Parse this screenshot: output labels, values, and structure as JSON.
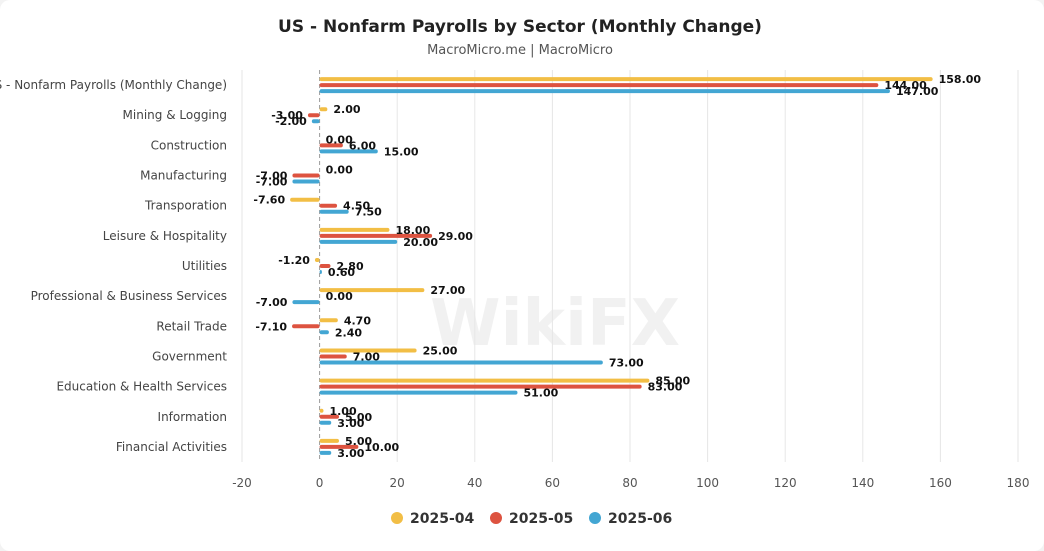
{
  "chart_data": {
    "type": "bar",
    "orientation": "horizontal",
    "title": "US - Nonfarm Payrolls by Sector (Monthly Change)",
    "subtitle": "MacroMicro.me | MacroMicro",
    "categories": [
      "US - Nonfarm Payrolls (Monthly Change)",
      "Mining & Logging",
      "Construction",
      "Manufacturing",
      "Transporation",
      "Leisure & Hospitality",
      "Utilities",
      "Professional & Business Services",
      "Retail Trade",
      "Government",
      "Education & Health Services",
      "Information",
      "Financial Activities"
    ],
    "series": [
      {
        "name": "2025-04",
        "color": "#f2be45",
        "values": [
          158.0,
          2.0,
          0.0,
          0.0,
          -7.6,
          18.0,
          -1.2,
          27.0,
          4.7,
          25.0,
          85.0,
          1.0,
          5.0
        ]
      },
      {
        "name": "2025-05",
        "color": "#dd5340",
        "values": [
          144.0,
          -3.0,
          6.0,
          -7.0,
          4.5,
          29.0,
          2.8,
          0.0,
          -7.1,
          7.0,
          83.0,
          5.0,
          10.0
        ]
      },
      {
        "name": "2025-06",
        "color": "#43a6d3",
        "values": [
          147.0,
          -2.0,
          15.0,
          -7.0,
          7.5,
          20.0,
          0.6,
          -7.0,
          2.4,
          73.0,
          51.0,
          3.0,
          3.0
        ]
      }
    ],
    "xticks": [
      -20,
      0,
      20,
      40,
      60,
      80,
      100,
      120,
      140,
      160,
      180
    ],
    "xlim": [
      -20,
      180
    ],
    "legend": "bottom-center",
    "watermark": "WikiFX"
  }
}
